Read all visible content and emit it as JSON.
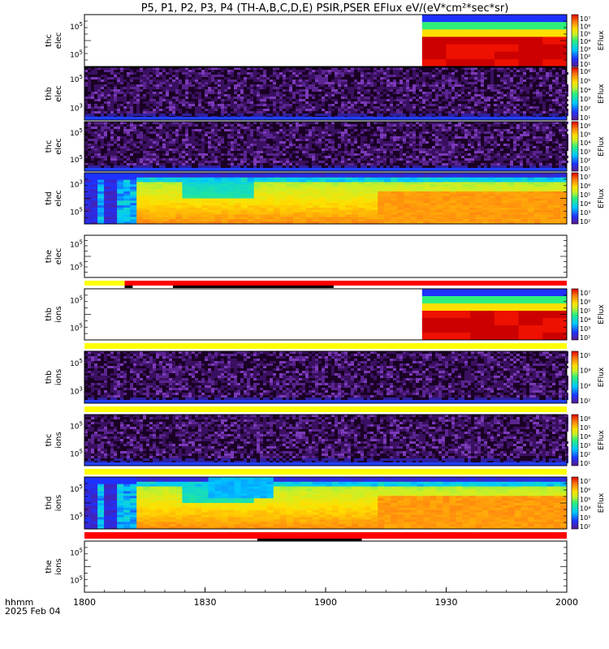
{
  "title": "P5, P1, P2, P3, P4 (TH-A,B,C,D,E) PSIR,PSER EFlux eV/(eV*cm²*sec*sr)",
  "colorbar_label": "EFlux",
  "chart_data": {
    "type": "heatmap",
    "x_range": [
      "18:00",
      "20:00"
    ],
    "x_ticks": [
      "1800",
      "1830",
      "1900",
      "1930",
      "2000"
    ],
    "x_label_top": "hhmm",
    "x_label_bottom": "2025 Feb 04",
    "panels": [
      {
        "label": [
          "thc",
          "elec"
        ],
        "probe": "thc",
        "species": "elec",
        "content": "late",
        "yticks": [
          {
            "base": "10",
            "exp": "5"
          },
          {
            "base": "10",
            "exp": "5"
          }
        ],
        "cbar": [
          "10⁷",
          "10⁶",
          "10⁵",
          "10⁴",
          "10³",
          "10²",
          "10¹"
        ]
      },
      {
        "label": [
          "thb",
          "elec"
        ],
        "probe": "thb",
        "species": "elec",
        "content": "noise",
        "yticks": [
          {
            "base": "10",
            "exp": "5"
          },
          {
            "base": "10",
            "exp": "3"
          }
        ],
        "cbar": [
          "10⁶",
          "10⁵",
          "10⁴",
          "10³",
          "10²",
          "10¹"
        ]
      },
      {
        "label": [
          "thc",
          "elec"
        ],
        "probe": "thc",
        "species": "elec",
        "content": "noise",
        "yticks": [
          {
            "base": "10",
            "exp": "5"
          },
          {
            "base": "10",
            "exp": "5"
          }
        ],
        "cbar": [
          "10⁶",
          "10⁵",
          "10⁴",
          "10³",
          "10²",
          "10¹"
        ]
      },
      {
        "label": [
          "thd",
          "elec"
        ],
        "probe": "thd",
        "species": "elec",
        "content": "full",
        "yticks": [
          {
            "base": "10",
            "exp": "3"
          },
          {
            "base": "10",
            "exp": "5"
          }
        ],
        "cbar": [
          "10⁷",
          "10⁶",
          "10⁵",
          "10⁴",
          "10³",
          "10²"
        ]
      },
      {
        "label": [
          "the",
          "elec"
        ],
        "probe": "the",
        "species": "elec",
        "content": "empty",
        "yticks": [
          {
            "base": "10",
            "exp": "5"
          },
          {
            "base": "10",
            "exp": "5"
          }
        ],
        "cbar": []
      },
      {
        "label": [
          "thb",
          "ions"
        ],
        "probe": "thb",
        "species": "ions",
        "content": "late",
        "yticks": [
          {
            "base": "10",
            "exp": "5"
          },
          {
            "base": "10",
            "exp": "5"
          }
        ],
        "cbar": [
          "10⁷",
          "10⁶",
          "10⁵",
          "10⁴",
          "10³",
          "10²"
        ]
      },
      {
        "label": [
          "thb",
          "ions"
        ],
        "probe": "thb",
        "species": "ions",
        "content": "noise",
        "yticks": [
          {
            "base": "10",
            "exp": "5"
          },
          {
            "base": "10",
            "exp": "3"
          }
        ],
        "cbar": [
          "10⁵",
          "10⁴",
          "10³",
          "10²"
        ]
      },
      {
        "label": [
          "thc",
          "ions"
        ],
        "probe": "thc",
        "species": "ions",
        "content": "noise",
        "yticks": [
          {
            "base": "10",
            "exp": "5"
          },
          {
            "base": "10",
            "exp": "5"
          }
        ],
        "cbar": [
          "10⁶",
          "10⁵",
          "10⁴",
          "10³",
          "10²",
          "10¹"
        ]
      },
      {
        "label": [
          "thd",
          "ions"
        ],
        "probe": "thd",
        "species": "ions",
        "content": "full",
        "yticks": [
          {
            "base": "10",
            "exp": "5"
          },
          {
            "base": "10",
            "exp": "5"
          }
        ],
        "cbar": [
          "10⁷",
          "10⁶",
          "10⁵",
          "10⁴",
          "10³",
          "10²"
        ]
      },
      {
        "label": [
          "the",
          "ions"
        ],
        "probe": "the",
        "species": "ions",
        "content": "empty",
        "yticks": [
          {
            "base": "10",
            "exp": "5"
          },
          {
            "base": "10",
            "exp": "5"
          }
        ],
        "cbar": []
      }
    ],
    "mode_bars": [
      {
        "segments": [
          {
            "from": "18:00",
            "to": "18:10",
            "color": "#ffff00"
          },
          {
            "from": "18:10",
            "to": "20:00",
            "color": "#ff0000"
          }
        ],
        "black_marks": [
          {
            "from": "18:10",
            "to": "18:12"
          },
          {
            "from": "18:22",
            "to": "19:02"
          }
        ]
      },
      {
        "segments": [
          {
            "from": "18:00",
            "to": "20:00",
            "color": "#ffff00"
          }
        ],
        "black_marks": []
      },
      {
        "segments": [
          {
            "from": "18:00",
            "to": "20:00",
            "color": "#ffff00"
          }
        ],
        "black_marks": []
      },
      {
        "segments": [
          {
            "from": "18:00",
            "to": "20:00",
            "color": "#ffff00"
          }
        ],
        "black_marks": []
      },
      {
        "segments": [
          {
            "from": "18:00",
            "to": "20:00",
            "color": "#ff0000"
          }
        ],
        "black_marks": [
          {
            "from": "18:43",
            "to": "19:09"
          }
        ]
      }
    ]
  }
}
